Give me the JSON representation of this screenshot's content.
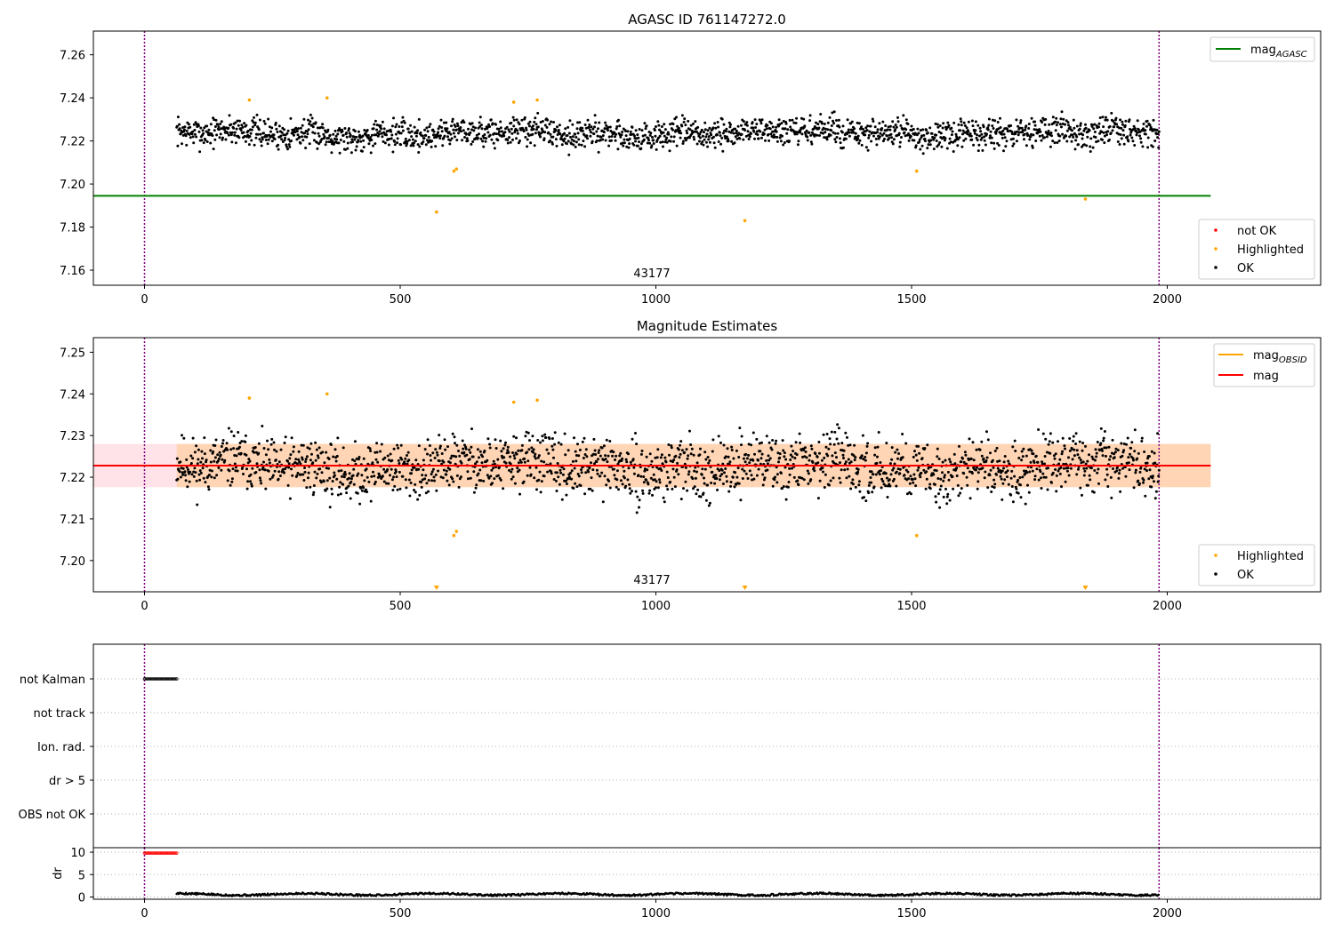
{
  "chart_data": [
    {
      "type": "scatter",
      "title": "AGASC ID 761147272.0",
      "xlim": [
        -100,
        2300
      ],
      "ylim": [
        7.153,
        7.271
      ],
      "x_ticks": [
        0,
        500,
        1000,
        1500,
        2000
      ],
      "y_ticks": [
        7.16,
        7.18,
        7.2,
        7.22,
        7.24,
        7.26
      ],
      "y_tick_labels": [
        "7.16",
        "7.18",
        "7.20",
        "7.22",
        "7.24",
        "7.26"
      ],
      "vlines": [
        0,
        1984
      ],
      "obsid_label": {
        "text": "43177",
        "x": 992
      },
      "lines": [
        {
          "name": "mag_AGASC",
          "label_base": "mag",
          "label_sub": "AGASC",
          "color": "#008000",
          "y": 7.1945,
          "x": [
            -100,
            2085
          ]
        }
      ],
      "series": [
        {
          "name": "not OK",
          "color": "#ff0000",
          "points": []
        },
        {
          "name": "Highlighted",
          "color": "#ffa500",
          "points": [
            [
              205,
              7.239
            ],
            [
              357,
              7.24
            ],
            [
              571,
              7.187
            ],
            [
              605,
              7.206
            ],
            [
              610,
              7.207
            ],
            [
              722,
              7.238
            ],
            [
              768,
              7.239
            ],
            [
              1174,
              7.183
            ],
            [
              1510,
              7.206
            ],
            [
              1840,
              7.193
            ]
          ]
        },
        {
          "name": "OK",
          "color": "#000000",
          "x_range": [
            63,
            1984
          ],
          "center": 7.2235,
          "spread": 0.0045,
          "seed": 7
        }
      ],
      "legends": [
        {
          "position": "top-right",
          "entries": [
            "mag_AGASC"
          ]
        },
        {
          "position": "bottom-right",
          "entries": [
            "not OK",
            "Highlighted",
            "OK"
          ]
        }
      ]
    },
    {
      "type": "scatter",
      "title": "Magnitude Estimates",
      "xlim": [
        -100,
        2300
      ],
      "ylim": [
        7.1925,
        7.2535
      ],
      "x_ticks": [
        0,
        500,
        1000,
        1500,
        2000
      ],
      "y_ticks": [
        7.2,
        7.21,
        7.22,
        7.23,
        7.24,
        7.25
      ],
      "y_tick_labels": [
        "7.20",
        "7.21",
        "7.22",
        "7.23",
        "7.24",
        "7.25"
      ],
      "vlines": [
        0,
        1984
      ],
      "obsid_label": {
        "text": "43177",
        "x": 992
      },
      "bands": [
        {
          "color": "#ffc0cb",
          "opacity": 0.45,
          "y": [
            7.2176,
            7.228
          ],
          "x": [
            -100,
            2085
          ]
        },
        {
          "color": "#ffa500",
          "opacity": 0.22,
          "y": [
            7.2176,
            7.228
          ],
          "x": [
            63,
            2085
          ]
        }
      ],
      "lines": [
        {
          "name": "mag_OBSID",
          "label_base": "mag",
          "label_sub": "OBSID",
          "color": "#ffa500",
          "y": 7.2228,
          "x": [
            63,
            2085
          ]
        },
        {
          "name": "mag",
          "label_base": "mag",
          "label_sub": "",
          "color": "#ff0000",
          "y": 7.2228,
          "x": [
            -100,
            2085
          ]
        }
      ],
      "series": [
        {
          "name": "Highlighted",
          "color": "#ffa500",
          "points": [
            [
              205,
              7.239
            ],
            [
              357,
              7.24
            ],
            [
              605,
              7.206
            ],
            [
              610,
              7.207
            ],
            [
              722,
              7.238
            ],
            [
              768,
              7.2385
            ],
            [
              1510,
              7.206
            ]
          ]
        },
        {
          "name": "OK",
          "color": "#000000",
          "x_range": [
            63,
            1984
          ],
          "center": 7.2225,
          "spread": 0.0045,
          "seed": 11
        }
      ],
      "off_scale_markers": {
        "color": "#ffa500",
        "x": [
          571,
          1174,
          1840
        ]
      },
      "legends": [
        {
          "position": "top-right",
          "entries": [
            "mag_OBSID",
            "mag"
          ]
        },
        {
          "position": "bottom-right",
          "entries": [
            "Highlighted",
            "OK"
          ]
        }
      ]
    },
    {
      "type": "scatter",
      "title": "",
      "xlim": [
        -100,
        2300
      ],
      "vlines": [
        0,
        1984
      ],
      "flag_rows": [
        "not Kalman",
        "not track",
        "Ion. rad.",
        "dr > 5",
        "OBS not OK"
      ],
      "flag_points": [
        {
          "row": "not Kalman",
          "x_range": [
            0,
            63
          ],
          "color": "#000000"
        }
      ],
      "dr_panel": {
        "ylabel": "dr",
        "ylim": [
          -0.5,
          11
        ],
        "y_ticks": [
          0,
          5,
          10
        ],
        "y_tick_labels": [
          "0",
          "5",
          "10"
        ],
        "x_ticks": [
          0,
          500,
          1000,
          1500,
          2000
        ],
        "clipped_points": {
          "x_range": [
            0,
            63
          ],
          "y": 9.8,
          "color": "#ff0000"
        },
        "series": {
          "name": "dr",
          "color": "#000000",
          "x_range": [
            63,
            1984
          ],
          "center": 0.6,
          "spread": 0.25,
          "seed": 5
        }
      }
    }
  ]
}
